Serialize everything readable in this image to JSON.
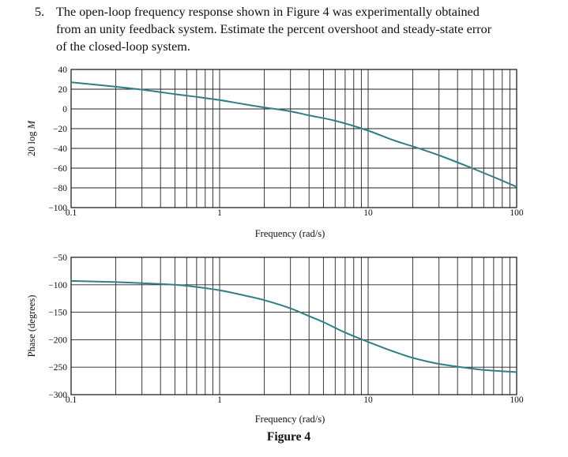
{
  "problem": {
    "number": "5.",
    "lines": [
      "The open-loop frequency response shown in Figure 4 was experimentally obtained",
      "from an unity feedback system. Estimate the percent overshoot and steady-state error",
      "of the closed-loop system."
    ]
  },
  "figure_caption": "Figure 4",
  "chart_data": [
    {
      "type": "line",
      "xscale": "log",
      "xlim": [
        0.1,
        100
      ],
      "ylim": [
        -100,
        40
      ],
      "xticks": [
        "0.1",
        "1",
        "10",
        "100"
      ],
      "yticks": [
        "40",
        "20",
        "0",
        "−20",
        "−40",
        "−60",
        "−80",
        "−100"
      ],
      "xlabel": "Frequency (rad/s)",
      "ylabel": "20 log M",
      "grid": true,
      "line_color": "#2e7f86",
      "x": [
        0.1,
        0.2,
        0.3,
        0.5,
        1,
        1.5,
        2,
        3,
        4,
        6,
        10,
        15,
        20,
        30,
        50,
        70,
        100
      ],
      "y": [
        27,
        22.5,
        19.5,
        15,
        9,
        4.5,
        1.5,
        -2.5,
        -6.5,
        -12,
        -22,
        -32,
        -38,
        -47,
        -60,
        -69,
        -79
      ]
    },
    {
      "type": "line",
      "xscale": "log",
      "xlim": [
        0.1,
        100
      ],
      "ylim": [
        -300,
        -50
      ],
      "xticks": [
        "0.1",
        "1",
        "10",
        "100"
      ],
      "yticks": [
        "−50",
        "−100",
        "−150",
        "−200",
        "−250",
        "−300"
      ],
      "xlabel": "Frequency (rad/s)",
      "ylabel": "Phase (degrees)",
      "grid": true,
      "line_color": "#2e7f86",
      "x": [
        0.1,
        0.2,
        0.3,
        0.5,
        0.7,
        1,
        1.5,
        2,
        3,
        4,
        5,
        7,
        10,
        15,
        20,
        30,
        40,
        60,
        100
      ],
      "y": [
        -93,
        -95,
        -97,
        -100,
        -104,
        -110,
        -120,
        -128,
        -143,
        -157,
        -168,
        -187,
        -204,
        -222,
        -233,
        -244,
        -249,
        -255,
        -259
      ]
    }
  ]
}
